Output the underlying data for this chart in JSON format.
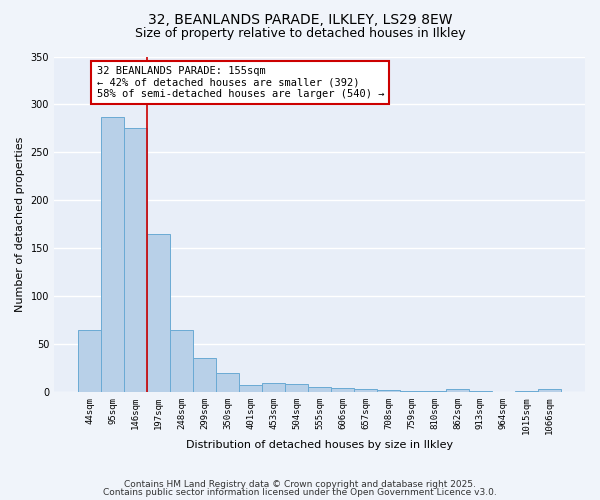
{
  "title_line1": "32, BEANLANDS PARADE, ILKLEY, LS29 8EW",
  "title_line2": "Size of property relative to detached houses in Ilkley",
  "xlabel": "Distribution of detached houses by size in Ilkley",
  "ylabel": "Number of detached properties",
  "categories": [
    "44sqm",
    "95sqm",
    "146sqm",
    "197sqm",
    "248sqm",
    "299sqm",
    "350sqm",
    "401sqm",
    "453sqm",
    "504sqm",
    "555sqm",
    "606sqm",
    "657sqm",
    "708sqm",
    "759sqm",
    "810sqm",
    "862sqm",
    "913sqm",
    "964sqm",
    "1015sqm",
    "1066sqm"
  ],
  "values": [
    65,
    287,
    275,
    165,
    65,
    35,
    20,
    7,
    9,
    8,
    5,
    4,
    3,
    2,
    1,
    1,
    3,
    1,
    0,
    1,
    3
  ],
  "bar_color": "#b8d0e8",
  "bar_edge_color": "#6aaad4",
  "vline_x": 2.5,
  "vline_color": "#cc0000",
  "annotation_text": "32 BEANLANDS PARADE: 155sqm\n← 42% of detached houses are smaller (392)\n58% of semi-detached houses are larger (540) →",
  "annotation_box_facecolor": "#ffffff",
  "annotation_box_edgecolor": "#cc0000",
  "annotation_fontsize": 7.5,
  "ylim": [
    0,
    350
  ],
  "yticks": [
    0,
    50,
    100,
    150,
    200,
    250,
    300,
    350
  ],
  "plot_bg_color": "#e8eef8",
  "fig_bg_color": "#f0f4fa",
  "grid_color": "#ffffff",
  "footer_line1": "Contains HM Land Registry data © Crown copyright and database right 2025.",
  "footer_line2": "Contains public sector information licensed under the Open Government Licence v3.0.",
  "footer_fontsize": 6.5,
  "title_fontsize1": 10,
  "title_fontsize2": 9,
  "xlabel_fontsize": 8,
  "ylabel_fontsize": 8,
  "tick_fontsize": 7,
  "xtick_fontsize": 6.5
}
